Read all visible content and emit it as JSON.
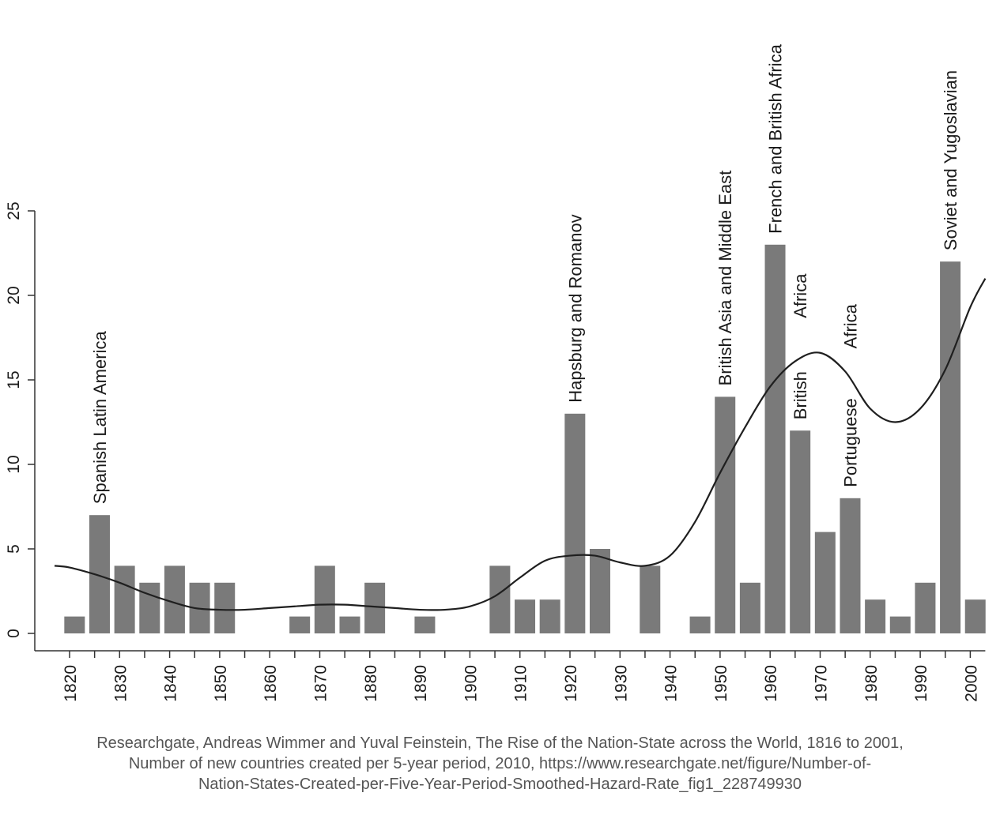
{
  "chart_data": {
    "type": "bar",
    "xlabel": "",
    "ylabel": "",
    "ylim": [
      0,
      25
    ],
    "xlim": [
      1817,
      2003
    ],
    "yticks": [
      0,
      5,
      10,
      15,
      20,
      25
    ],
    "xticks": [
      1820,
      1830,
      1840,
      1850,
      1860,
      1870,
      1880,
      1890,
      1900,
      1910,
      1920,
      1930,
      1940,
      1950,
      1960,
      1970,
      1980,
      1990,
      2000
    ],
    "bars": {
      "x": [
        1821,
        1826,
        1831,
        1836,
        1841,
        1846,
        1851,
        1866,
        1871,
        1876,
        1881,
        1891,
        1906,
        1911,
        1916,
        1921,
        1926,
        1936,
        1946,
        1951,
        1956,
        1961,
        1966,
        1971,
        1976,
        1981,
        1986,
        1991,
        1996,
        2001
      ],
      "values": [
        1,
        7,
        4,
        3,
        4,
        3,
        3,
        1,
        4,
        1,
        3,
        1,
        4,
        2,
        2,
        13,
        5,
        4,
        1,
        14,
        3,
        23,
        12,
        6,
        8,
        2,
        1,
        3,
        22,
        2
      ]
    },
    "smoothed_line": {
      "x": [
        1817,
        1820,
        1825,
        1830,
        1835,
        1840,
        1845,
        1850,
        1855,
        1860,
        1865,
        1870,
        1875,
        1880,
        1885,
        1890,
        1895,
        1900,
        1905,
        1910,
        1915,
        1920,
        1925,
        1930,
        1935,
        1940,
        1945,
        1950,
        1955,
        1960,
        1965,
        1970,
        1975,
        1980,
        1985,
        1990,
        1995,
        2000,
        2003
      ],
      "y": [
        4.0,
        3.9,
        3.5,
        3.0,
        2.4,
        1.9,
        1.5,
        1.4,
        1.4,
        1.5,
        1.6,
        1.7,
        1.7,
        1.6,
        1.5,
        1.4,
        1.4,
        1.6,
        2.2,
        3.3,
        4.3,
        4.6,
        4.6,
        4.2,
        4.0,
        4.6,
        6.6,
        9.5,
        12.2,
        14.6,
        16.1,
        16.6,
        15.5,
        13.3,
        12.5,
        13.3,
        15.6,
        19.3,
        21.0
      ]
    },
    "annotations": [
      {
        "text": "Spanish Latin America",
        "x": 1826,
        "y": 7
      },
      {
        "text": "Hapsburg and Romanov",
        "x": 1921,
        "y": 13
      },
      {
        "text": "British Asia and Middle East",
        "x": 1951,
        "y": 14
      },
      {
        "text": "French and British Africa",
        "x": 1961,
        "y": 23
      },
      {
        "text": "British",
        "x": 1966,
        "y": 12
      },
      {
        "text": "Africa",
        "x": 1966,
        "y": 18
      },
      {
        "text": "Portuguese",
        "x": 1976,
        "y": 8
      },
      {
        "text": "Africa",
        "x": 1976,
        "y": 16.2
      },
      {
        "text": "Soviet and Yugoslavian",
        "x": 1996,
        "y": 22
      }
    ]
  },
  "caption": {
    "line1": "Researchgate, Andreas Wimmer and Yuval Feinstein, The Rise of the Nation-State across the World, 1816 to 2001,",
    "line2": "Number of new countries created per 5-year period, 2010, https://www.researchgate.net/figure/Number-of-",
    "line3": "Nation-States-Created-per-Five-Year-Period-Smoothed-Hazard-Rate_fig1_228749930"
  }
}
